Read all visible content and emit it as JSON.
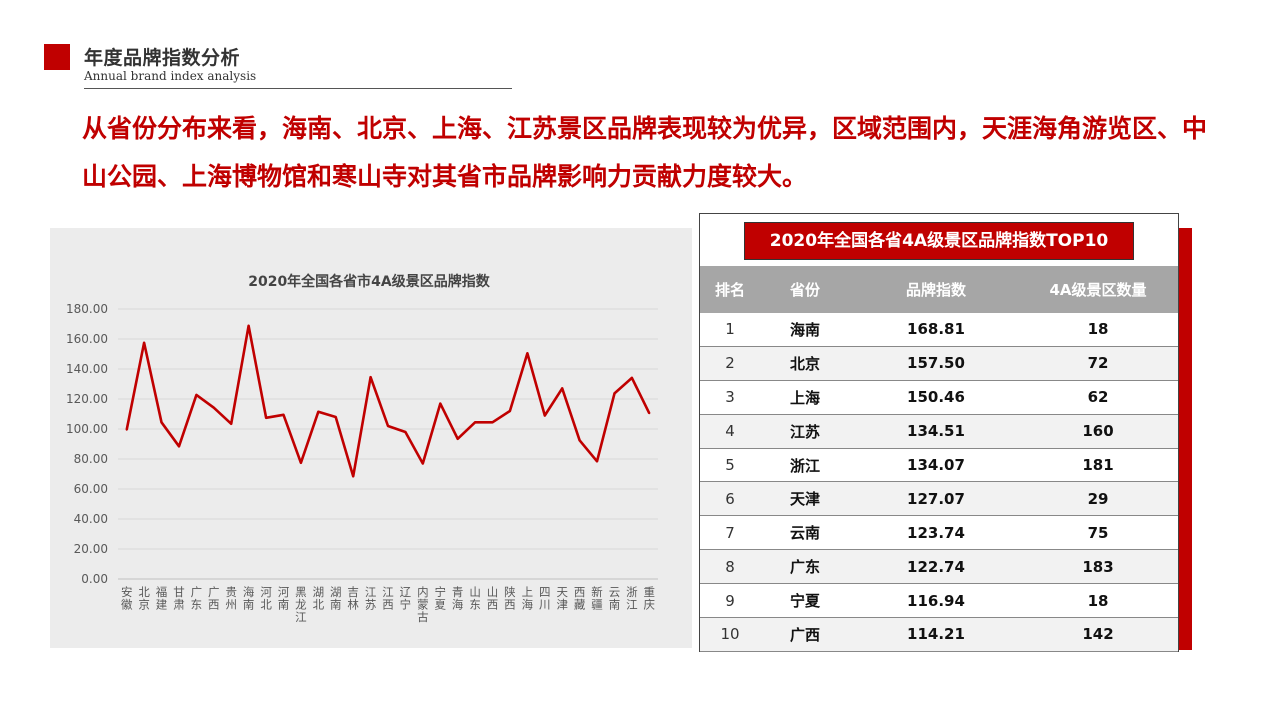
{
  "header": {
    "title": "年度品牌指数分析",
    "subtitle": "Annual brand index analysis"
  },
  "headline": "从省份分布来看，海南、北京、上海、江苏景区品牌表现较为优异，区域范围内，天涯海角游览区、中山公园、上海博物馆和寒山寺对其省市品牌影响力贡献力度较大。",
  "colors": {
    "accent": "#c00000",
    "panel_bg": "#ececec",
    "table_header_bg": "#a6a6a6"
  },
  "chart_data": {
    "type": "line",
    "title": "2020年全国各省市4A级景区品牌指数",
    "xlabel": "",
    "ylabel": "",
    "ylim": [
      0,
      180
    ],
    "yticks": [
      "0.00",
      "20.00",
      "40.00",
      "60.00",
      "80.00",
      "100.00",
      "120.00",
      "140.00",
      "160.00",
      "180.00"
    ],
    "grid": true,
    "legend": "none",
    "categories": [
      "安徽",
      "北京",
      "福建",
      "甘肃",
      "广东",
      "广西",
      "贵州",
      "海南",
      "河北",
      "河南",
      "黑龙江",
      "湖北",
      "湖南",
      "吉林",
      "江苏",
      "江西",
      "辽宁",
      "内蒙古",
      "宁夏",
      "青海",
      "山东",
      "山西",
      "陕西",
      "上海",
      "四川",
      "天津",
      "西藏",
      "新疆",
      "云南",
      "浙江",
      "重庆"
    ],
    "series": [
      {
        "color": "#c00000",
        "values": [
          99.5,
          157.5,
          104.5,
          88.5,
          122.74,
          114.21,
          103.5,
          168.81,
          107.5,
          109.5,
          77.5,
          111.5,
          108.0,
          68.5,
          134.51,
          102.0,
          98.0,
          77.0,
          116.94,
          93.5,
          104.5,
          104.5,
          112.0,
          150.46,
          109.0,
          127.07,
          92.5,
          78.5,
          123.74,
          134.07,
          110.5
        ]
      }
    ]
  },
  "table": {
    "title": "2020年全国各省4A级景区品牌指数TOP10",
    "columns": [
      "排名",
      "省份",
      "品牌指数",
      "4A级景区数量"
    ],
    "rows": [
      {
        "rank": "1",
        "province": "海南",
        "index": "168.81",
        "count": "18"
      },
      {
        "rank": "2",
        "province": "北京",
        "index": "157.50",
        "count": "72"
      },
      {
        "rank": "3",
        "province": "上海",
        "index": "150.46",
        "count": "62"
      },
      {
        "rank": "4",
        "province": "江苏",
        "index": "134.51",
        "count": "160"
      },
      {
        "rank": "5",
        "province": "浙江",
        "index": "134.07",
        "count": "181"
      },
      {
        "rank": "6",
        "province": "天津",
        "index": "127.07",
        "count": "29"
      },
      {
        "rank": "7",
        "province": "云南",
        "index": "123.74",
        "count": "75"
      },
      {
        "rank": "8",
        "province": "广东",
        "index": "122.74",
        "count": "183"
      },
      {
        "rank": "9",
        "province": "宁夏",
        "index": "116.94",
        "count": "18"
      },
      {
        "rank": "10",
        "province": "广西",
        "index": "114.21",
        "count": "142"
      }
    ]
  }
}
